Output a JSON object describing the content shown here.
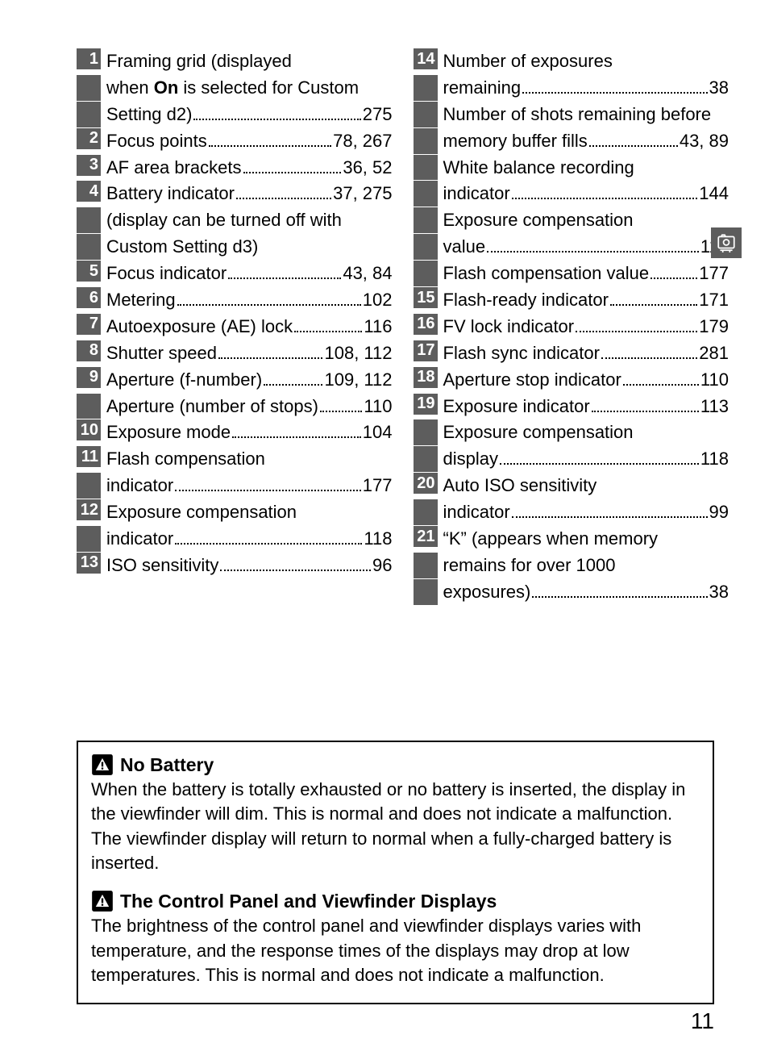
{
  "left": [
    {
      "n": "1",
      "lines": [
        {
          "t": "Framing grid (displayed"
        },
        {
          "pre": "when ",
          "bold": "On",
          "post": " is selected for Custom"
        },
        {
          "t": "Setting d2)",
          "p": "275"
        }
      ]
    },
    {
      "n": "2",
      "lines": [
        {
          "t": "Focus points",
          "p": "78, 267"
        }
      ]
    },
    {
      "n": "3",
      "lines": [
        {
          "t": "AF area brackets",
          "p": "36, 52"
        }
      ]
    },
    {
      "n": "4",
      "lines": [
        {
          "t": "Battery indicator",
          "p": "37, 275"
        },
        {
          "t": "(display can be turned off with"
        },
        {
          "t": "Custom Setting d3)"
        }
      ]
    },
    {
      "n": "5",
      "lines": [
        {
          "t": "Focus indicator",
          "p": "43, 84"
        }
      ]
    },
    {
      "n": "6",
      "lines": [
        {
          "t": "Metering",
          "p": "102"
        }
      ]
    },
    {
      "n": "7",
      "lines": [
        {
          "t": "Autoexposure (AE) lock",
          "p": "116"
        }
      ]
    },
    {
      "n": "8",
      "lines": [
        {
          "t": "Shutter speed",
          "p": "108, 112"
        }
      ]
    },
    {
      "n": "9",
      "lines": [
        {
          "t": "Aperture (f-number)",
          "p": "109, 112"
        },
        {
          "t": "Aperture (number of stops)",
          "p": "110"
        }
      ]
    },
    {
      "n": "10",
      "lines": [
        {
          "t": "Exposure mode",
          "p": "104"
        }
      ]
    },
    {
      "n": "11",
      "lines": [
        {
          "t": "Flash compensation"
        },
        {
          "t": "indicator",
          "p": "177"
        }
      ]
    },
    {
      "n": "12",
      "lines": [
        {
          "t": "Exposure compensation"
        },
        {
          "t": "indicator",
          "p": "118"
        }
      ]
    },
    {
      "n": "13",
      "lines": [
        {
          "t": "ISO sensitivity",
          "p": "96"
        }
      ]
    }
  ],
  "right": [
    {
      "n": "14",
      "lines": [
        {
          "t": "Number of exposures"
        },
        {
          "t": "remaining",
          "p": "38"
        },
        {
          "t": "Number of shots remaining before"
        },
        {
          "t": "memory buffer fills",
          "p": "43, 89"
        },
        {
          "t": "White balance recording"
        },
        {
          "t": "indicator",
          "p": "144"
        },
        {
          "t": "Exposure compensation"
        },
        {
          "t": "value",
          "p": "118"
        },
        {
          "t": "Flash compensation value",
          "p": "177"
        }
      ]
    },
    {
      "n": "15",
      "lines": [
        {
          "t": "Flash-ready indicator",
          "p": "171"
        }
      ]
    },
    {
      "n": "16",
      "lines": [
        {
          "t": "FV lock indicator",
          "p": "179"
        }
      ]
    },
    {
      "n": "17",
      "lines": [
        {
          "t": "Flash sync indicator",
          "p": "281"
        }
      ]
    },
    {
      "n": "18",
      "lines": [
        {
          "t": "Aperture stop indicator",
          "p": "110"
        }
      ]
    },
    {
      "n": "19",
      "lines": [
        {
          "t": "Exposure indicator",
          "p": "113"
        },
        {
          "t": "Exposure compensation"
        },
        {
          "t": "display",
          "p": "118"
        }
      ]
    },
    {
      "n": "20",
      "lines": [
        {
          "t": "Auto ISO sensitivity"
        },
        {
          "t": "indicator",
          "p": "99"
        }
      ]
    },
    {
      "n": "21",
      "lines": [
        {
          "t": "“K” (appears when memory"
        },
        {
          "t": "remains for over 1000"
        },
        {
          "t": "exposures)",
          "p": "38"
        }
      ]
    }
  ],
  "notes": [
    {
      "title": "No Battery",
      "body": "When the battery is totally exhausted or no battery is inserted, the display in the viewfinder will dim.  This is normal and does not indicate a malfunction.  The viewfinder display will return to normal when a fully-charged battery is inserted."
    },
    {
      "title": "The Control Panel and Viewfinder Displays",
      "body": "The brightness of the control panel and viewfinder displays varies with temperature, and the response times of the displays may drop at low temperatures.  This is normal and does not indicate a malfunction."
    }
  ],
  "page_number": "11"
}
